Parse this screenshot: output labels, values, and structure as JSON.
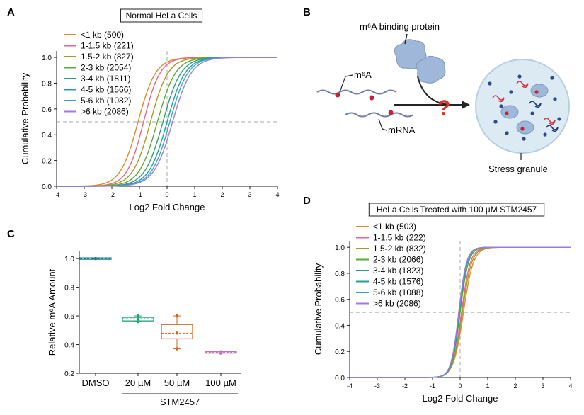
{
  "panels": {
    "A": "A",
    "B": "B",
    "C": "C",
    "D": "D"
  },
  "diagram_b": {
    "protein_label": "m⁶A binding protein",
    "m6a_label": "m⁶A",
    "mrna_label": "mRNA",
    "granule_label": "Stress granule",
    "question_mark": "?",
    "colors": {
      "protein": "#9fb7d8",
      "granule_fill": "#dceaf3",
      "granule_edge": "#b6cfe0",
      "rna": "#6e7ea8",
      "m6a": "#c0262d",
      "question": "#d9342b"
    }
  },
  "chart_data": [
    {
      "id": "A",
      "type": "line",
      "title": "Normal HeLa Cells",
      "xlabel": "Log2 Fold Change",
      "ylabel": "Cumulative Probability",
      "xlim": [
        -4,
        4
      ],
      "ylim": [
        0,
        1.05
      ],
      "xticks": [
        -4,
        -3,
        -2,
        -1,
        0,
        1,
        2,
        3,
        4
      ],
      "yticks": [
        0.0,
        0.2,
        0.4,
        0.6,
        0.8,
        1.0
      ],
      "ytick_labels": [
        "0.0",
        "0.2",
        "0.4",
        "0.6",
        "0.8",
        "1.0"
      ],
      "reference_lines": {
        "x": 0,
        "y": 0.5
      },
      "legend_position": "top-left",
      "series": [
        {
          "name": "<1 kb (500)",
          "color": "#e08a2a",
          "median": -1.05,
          "scale": 0.32
        },
        {
          "name": "1-1.5 kb (221)",
          "color": "#e8658a",
          "median": -0.85,
          "scale": 0.3
        },
        {
          "name": "1.5-2 kb (827)",
          "color": "#a89a1e",
          "median": -0.6,
          "scale": 0.32
        },
        {
          "name": "2-3 kb (2054)",
          "color": "#5aaa3a",
          "median": -0.35,
          "scale": 0.33
        },
        {
          "name": "3-4 kb (1811)",
          "color": "#2aa070",
          "median": -0.15,
          "scale": 0.33
        },
        {
          "name": "4-5 kb (1566)",
          "color": "#22a0a0",
          "median": 0.0,
          "scale": 0.33
        },
        {
          "name": "5-6 kb (1082)",
          "color": "#3aa0d8",
          "median": 0.1,
          "scale": 0.33
        },
        {
          "name": ">6 kb (2086)",
          "color": "#a07ae0",
          "median": 0.2,
          "scale": 0.34
        }
      ]
    },
    {
      "id": "C",
      "type": "box",
      "xlabel": "STM2457",
      "ylabel": "Relative m⁶A Amount",
      "ylim": [
        0.2,
        1.05
      ],
      "yticks": [
        0.2,
        0.4,
        0.6,
        0.8,
        1.0
      ],
      "ytick_labels": [
        "0.2",
        "0.4",
        "0.6",
        "0.8",
        "1.0"
      ],
      "categories": [
        "DMSO",
        "20 µM",
        "50 µM",
        "100 µM"
      ],
      "boxes": [
        {
          "color": "#1a7f8e",
          "min": 1.0,
          "q1": 1.0,
          "median": 1.0,
          "q3": 1.0,
          "max": 1.0,
          "points": [
            1.0
          ]
        },
        {
          "color": "#1fa57a",
          "min": 0.56,
          "q1": 0.565,
          "median": 0.58,
          "q3": 0.59,
          "max": 0.6,
          "points": [
            0.56,
            0.58,
            0.6
          ]
        },
        {
          "color": "#d0661a",
          "min": 0.37,
          "q1": 0.44,
          "median": 0.48,
          "q3": 0.54,
          "max": 0.6,
          "points": [
            0.37,
            0.48,
            0.6
          ]
        },
        {
          "color": "#c078b8",
          "min": 0.34,
          "q1": 0.34,
          "median": 0.345,
          "q3": 0.35,
          "max": 0.35,
          "points": [
            0.34,
            0.345,
            0.35
          ]
        }
      ]
    },
    {
      "id": "D",
      "type": "line",
      "title": "HeLa Cells Treated with 100 µM STM2457",
      "xlabel": "Log2 Fold Change",
      "ylabel": "Cumulative Probability",
      "xlim": [
        -4,
        4
      ],
      "ylim": [
        0,
        1.05
      ],
      "xticks": [
        -4,
        -3,
        -2,
        -1,
        0,
        1,
        2,
        3,
        4
      ],
      "yticks": [
        0.0,
        0.2,
        0.4,
        0.6,
        0.8,
        1.0
      ],
      "ytick_labels": [
        "0.0",
        "0.2",
        "0.4",
        "0.6",
        "0.8",
        "1.0"
      ],
      "reference_lines": {
        "x": 0,
        "y": 0.5
      },
      "legend_position": "top-left",
      "series": [
        {
          "name": "<1 kb (503)",
          "color": "#e08a2a",
          "median": 0.12,
          "scale": 0.18
        },
        {
          "name": "1-1.5 kb (222)",
          "color": "#e8658a",
          "median": 0.05,
          "scale": 0.16
        },
        {
          "name": "1.5-2 kb (832)",
          "color": "#a89a1e",
          "median": 0.08,
          "scale": 0.17
        },
        {
          "name": "2-3 kb (2066)",
          "color": "#5aaa3a",
          "median": 0.0,
          "scale": 0.15
        },
        {
          "name": "3-4 kb (1823)",
          "color": "#2aa070",
          "median": -0.02,
          "scale": 0.14
        },
        {
          "name": "4-5 kb (1576)",
          "color": "#22a0a0",
          "median": -0.03,
          "scale": 0.14
        },
        {
          "name": "5-6 kb (1088)",
          "color": "#3aa0d8",
          "median": -0.04,
          "scale": 0.14
        },
        {
          "name": ">6 kb (2086)",
          "color": "#a07ae0",
          "median": -0.05,
          "scale": 0.14
        }
      ]
    }
  ]
}
